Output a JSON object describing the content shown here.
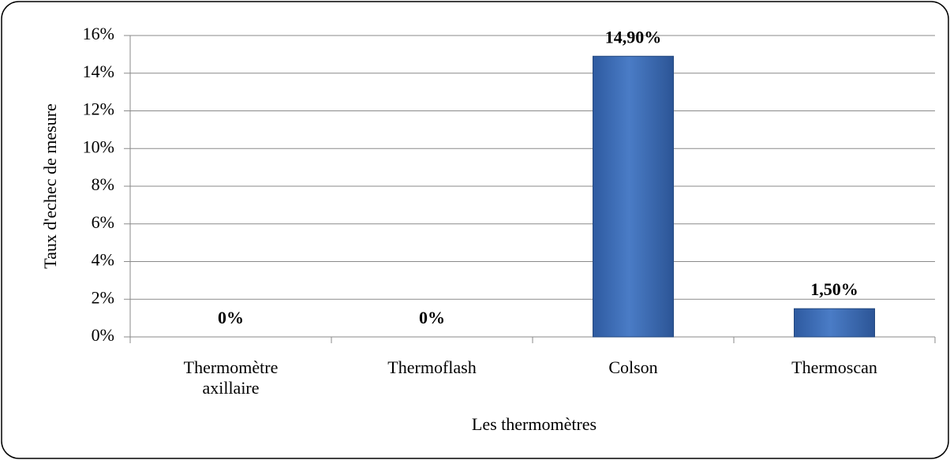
{
  "chart_data": {
    "type": "bar",
    "x_label": "Les thermomètres",
    "y_label": "Taux d'echec de mesure",
    "categories": [
      "Thermomètre axillaire",
      "Thermoflash",
      "Colson",
      "Thermoscan"
    ],
    "values": [
      0,
      0,
      14.9,
      1.5
    ],
    "value_labels": [
      "0%",
      "0%",
      "14,90%",
      "1,50%"
    ],
    "color": "#3d6cb3",
    "ylim": [
      0,
      16
    ],
    "yticks": [
      {
        "value": 0,
        "label": "0%"
      },
      {
        "value": 2,
        "label": "2%"
      },
      {
        "value": 4,
        "label": "4%"
      },
      {
        "value": 6,
        "label": "6%"
      },
      {
        "value": 8,
        "label": "8%"
      },
      {
        "value": 10,
        "label": "10%"
      },
      {
        "value": 12,
        "label": "12%"
      },
      {
        "value": 14,
        "label": "14%"
      },
      {
        "value": 16,
        "label": "16%"
      }
    ],
    "grid": true
  }
}
